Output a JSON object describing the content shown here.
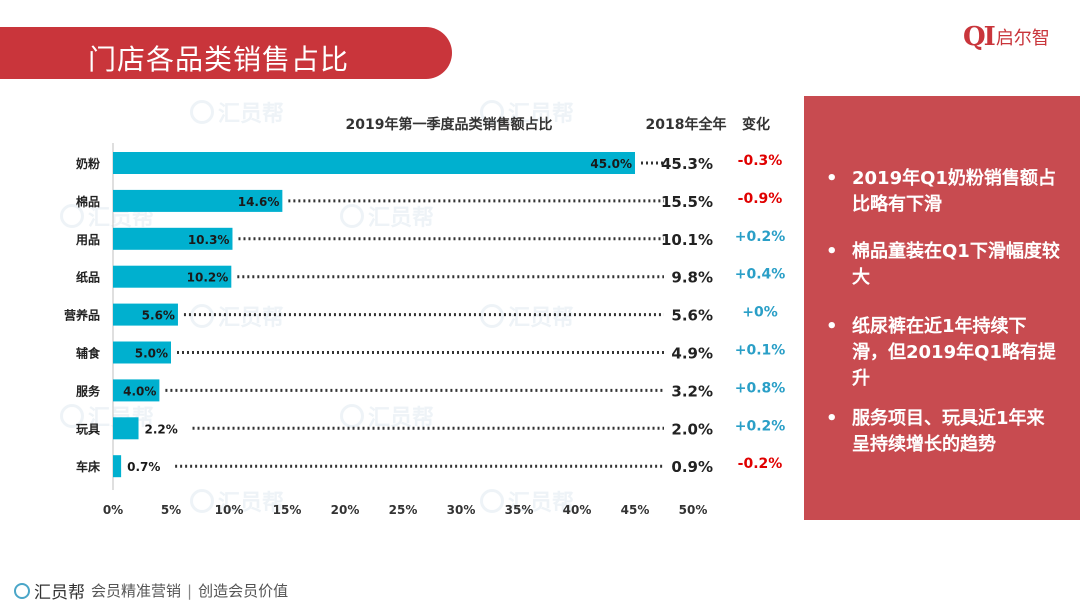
{
  "header": {
    "title": "门店各品类销售占比",
    "logo_mark": "QI",
    "logo_name": "启尔智"
  },
  "watermark_text": "汇员帮",
  "chart_data": {
    "type": "bar",
    "orientation": "horizontal",
    "title": "2019年第一季度品类销售额占比",
    "categories": [
      "奶粉",
      "棉品",
      "用品",
      "纸品",
      "营养品",
      "辅食",
      "服务",
      "玩具",
      "车床"
    ],
    "values": [
      45.0,
      14.6,
      10.3,
      10.2,
      5.6,
      5.0,
      4.0,
      2.2,
      0.7
    ],
    "value_labels": [
      "45.0%",
      "14.6%",
      "10.3%",
      "10.2%",
      "5.6%",
      "5.0%",
      "4.0%",
      "2.2%",
      "0.7%"
    ],
    "xlim": [
      0,
      50
    ],
    "x_ticks": [
      "0%",
      "5%",
      "10%",
      "15%",
      "20%",
      "25%",
      "30%",
      "35%",
      "40%",
      "45%",
      "50%"
    ],
    "compare_header": "2018年全年",
    "change_header": "变化",
    "compare_values": [
      "45.3%",
      "15.5%",
      "10.1%",
      "9.8%",
      "5.6%",
      "4.9%",
      "3.2%",
      "2.0%",
      "0.9%"
    ],
    "changes": [
      "-0.3%",
      "-0.9%",
      "+0.2%",
      "+0.4%",
      "+0%",
      "+0.1%",
      "+0.8%",
      "+0.2%",
      "-0.2%"
    ],
    "bar_color": "#00b0cf",
    "negative_color": "#e00000",
    "positive_color": "#2a9fc7"
  },
  "side_panel": {
    "bullets": [
      "2019年Q1奶粉销售额占比略有下滑",
      "棉品童装在Q1下滑幅度较大",
      "纸尿裤在近1年持续下滑，但2019年Q1略有提升",
      "服务项目、玩具近1年来呈持续增长的趋势"
    ],
    "bullet_symbol": "•"
  },
  "footer": {
    "brand": "汇员帮",
    "slogan_1": "会员精准营销",
    "separator": "|",
    "slogan_2": "创造会员价值"
  }
}
